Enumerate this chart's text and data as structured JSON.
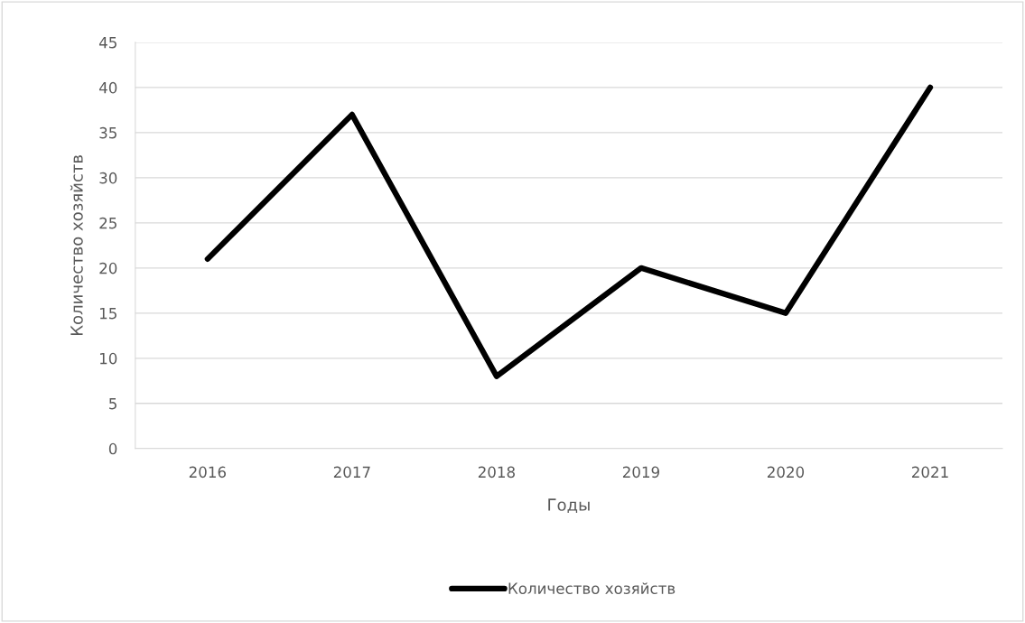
{
  "chart_data": {
    "type": "line",
    "xlabel": "Годы",
    "ylabel": "Количество хозяйств",
    "categories": [
      "2016",
      "2017",
      "2018",
      "2019",
      "2020",
      "2021"
    ],
    "series": [
      {
        "name": "Количество хозяйств",
        "color": "#000000",
        "values": [
          21,
          37,
          8,
          20,
          15,
          40
        ]
      }
    ],
    "ylim": [
      0,
      45
    ],
    "yticks": [
      0,
      5,
      10,
      15,
      20,
      25,
      30,
      35,
      40,
      45
    ],
    "grid": "y",
    "legend": "bottom",
    "marker": "none",
    "line_style": "solid"
  }
}
